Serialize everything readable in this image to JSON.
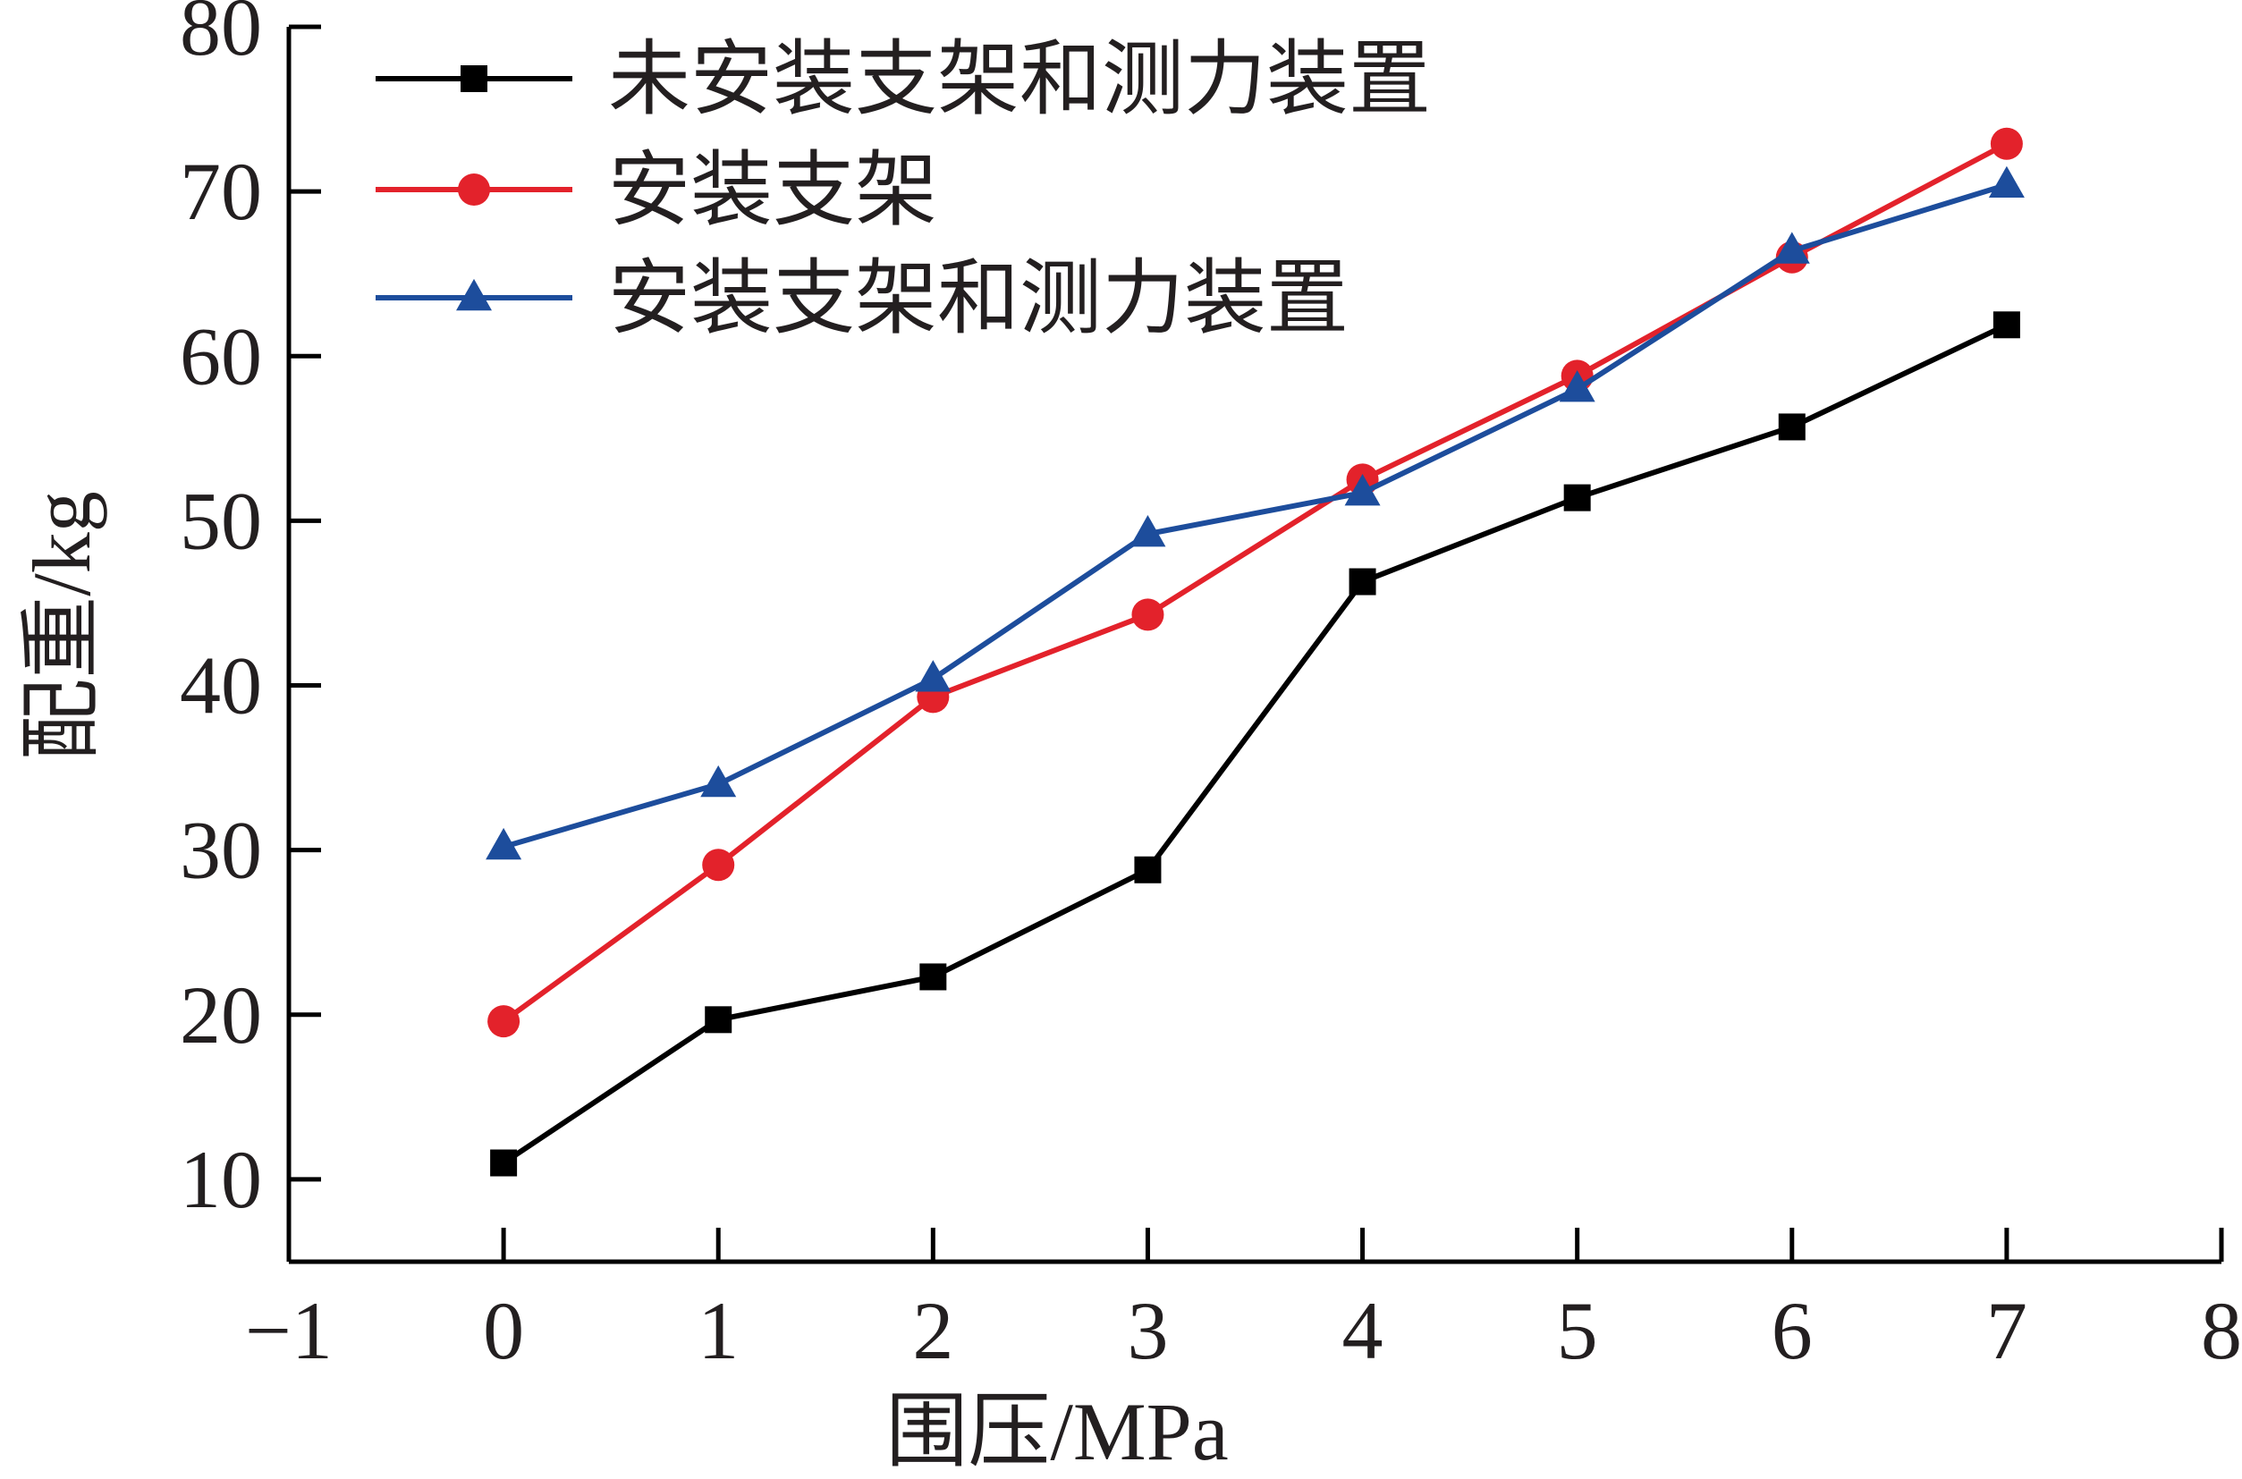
{
  "chart_data": {
    "type": "line",
    "title": "",
    "xlabel": "围压/MPa",
    "ylabel": "配重/kg",
    "xlim": [
      -1,
      8
    ],
    "ylim": [
      5,
      80
    ],
    "xticks": [
      -1,
      0,
      1,
      2,
      3,
      4,
      5,
      6,
      7,
      8
    ],
    "yticks": [
      10,
      20,
      30,
      40,
      50,
      60,
      70,
      80
    ],
    "xtick_labels": [
      "−1",
      "0",
      "1",
      "2",
      "3",
      "4",
      "5",
      "6",
      "7",
      "8"
    ],
    "ytick_labels": [
      "10",
      "20",
      "30",
      "40",
      "50",
      "60",
      "70",
      "80"
    ],
    "grid": false,
    "legend_position": "top-left",
    "x": [
      0,
      1,
      2,
      3,
      4,
      5,
      6,
      7
    ],
    "series": [
      {
        "name": "未安装支架和测力装置",
        "color": "#000000",
        "marker": "square",
        "values": [
          11.0,
          19.7,
          22.3,
          28.8,
          46.3,
          51.4,
          55.7,
          61.9
        ]
      },
      {
        "name": "安装支架",
        "color": "#e3222b",
        "marker": "circle",
        "values": [
          19.6,
          29.1,
          39.3,
          44.3,
          52.5,
          58.8,
          66.0,
          72.9
        ]
      },
      {
        "name": "安装支架和测力装置",
        "color": "#1d4d9c",
        "marker": "triangle",
        "values": [
          30.2,
          34.0,
          40.4,
          49.2,
          51.7,
          58.0,
          66.4,
          70.4
        ]
      }
    ]
  }
}
